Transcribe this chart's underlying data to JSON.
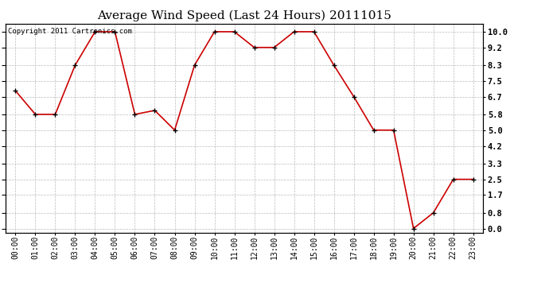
{
  "title": "Average Wind Speed (Last 24 Hours) 20111015",
  "copyright_text": "Copyright 2011 Cartronics.com",
  "hours": [
    "00:00",
    "01:00",
    "02:00",
    "03:00",
    "04:00",
    "05:00",
    "06:00",
    "07:00",
    "08:00",
    "09:00",
    "10:00",
    "11:00",
    "12:00",
    "13:00",
    "14:00",
    "15:00",
    "16:00",
    "17:00",
    "18:00",
    "19:00",
    "20:00",
    "21:00",
    "22:00",
    "23:00"
  ],
  "values": [
    7.0,
    5.8,
    5.8,
    8.3,
    10.0,
    10.0,
    5.8,
    6.0,
    5.0,
    8.3,
    10.0,
    10.0,
    9.2,
    9.2,
    10.0,
    10.0,
    8.3,
    6.7,
    5.0,
    5.0,
    0.0,
    0.8,
    2.5,
    2.5
  ],
  "line_color": "#cc0000",
  "marker_color": "#000000",
  "bg_color": "#ffffff",
  "grid_color": "#bbbbbb",
  "yticks": [
    0.0,
    0.8,
    1.7,
    2.5,
    3.3,
    4.2,
    5.0,
    5.8,
    6.7,
    7.5,
    8.3,
    9.2,
    10.0
  ],
  "ymin": -0.2,
  "ymax": 10.4,
  "title_fontsize": 11,
  "copyright_fontsize": 6.5,
  "tick_fontsize": 7,
  "ytick_fontsize": 7.5
}
